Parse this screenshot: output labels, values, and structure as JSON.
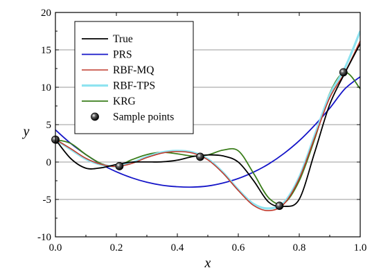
{
  "chart_data": {
    "type": "line",
    "title": "",
    "xlabel": "x",
    "ylabel": "y",
    "xlim": [
      0,
      1
    ],
    "ylim": [
      -10,
      20
    ],
    "grid": "horizontal",
    "legend_position": "top-left",
    "x_ticks": [
      "0.0",
      "0.2",
      "0.4",
      "0.6",
      "0.8",
      "1.0"
    ],
    "y_ticks": [
      "-10",
      "-5",
      "0",
      "5",
      "10",
      "15",
      "20"
    ],
    "series": [
      {
        "name": "True",
        "color": "#000000",
        "x": [
          0.0,
          0.05,
          0.1,
          0.15,
          0.2,
          0.25,
          0.3,
          0.35,
          0.4,
          0.45,
          0.5,
          0.55,
          0.6,
          0.65,
          0.7,
          0.75,
          0.8,
          0.85,
          0.9,
          0.95,
          1.0
        ],
        "y": [
          3.03,
          0.48,
          -0.82,
          -0.77,
          -0.32,
          -0.01,
          0.01,
          0.03,
          0.25,
          0.73,
          0.95,
          0.82,
          -0.01,
          -2.48,
          -5.37,
          -5.93,
          -4.97,
          1.22,
          7.71,
          11.92,
          15.83
        ]
      },
      {
        "name": "PRS",
        "color": "#1414c8",
        "x": [
          0.0,
          0.05,
          0.1,
          0.15,
          0.2,
          0.25,
          0.3,
          0.35,
          0.4,
          0.45,
          0.5,
          0.55,
          0.6,
          0.65,
          0.7,
          0.75,
          0.8,
          0.85,
          0.9,
          0.95,
          1.0
        ],
        "y": [
          4.3,
          2.5,
          1.0,
          -0.3,
          -1.3,
          -2.1,
          -2.7,
          -3.1,
          -3.3,
          -3.35,
          -3.2,
          -2.8,
          -2.2,
          -1.35,
          -0.25,
          1.15,
          2.85,
          4.9,
          7.2,
          9.8,
          11.4
        ]
      },
      {
        "name": "RBF-MQ",
        "color": "#c0392b",
        "x": [
          0.0,
          0.05,
          0.1,
          0.15,
          0.2,
          0.25,
          0.3,
          0.35,
          0.4,
          0.45,
          0.5,
          0.55,
          0.6,
          0.65,
          0.7,
          0.75,
          0.8,
          0.85,
          0.9,
          0.95,
          1.0
        ],
        "y": [
          3.03,
          1.8,
          0.5,
          -0.3,
          -0.6,
          -0.2,
          0.6,
          1.2,
          1.4,
          1.2,
          0.3,
          -1.5,
          -3.8,
          -5.8,
          -6.5,
          -5.6,
          -2.2,
          3.2,
          8.6,
          12.0,
          16.2
        ]
      },
      {
        "name": "RBF-TPS",
        "color": "#8fe3f0",
        "x": [
          0.0,
          0.05,
          0.1,
          0.15,
          0.2,
          0.25,
          0.3,
          0.35,
          0.4,
          0.45,
          0.5,
          0.55,
          0.6,
          0.65,
          0.7,
          0.75,
          0.8,
          0.85,
          0.9,
          0.95,
          1.0
        ],
        "y": [
          3.0,
          1.7,
          0.4,
          -0.35,
          -0.55,
          -0.1,
          0.7,
          1.3,
          1.5,
          1.3,
          0.4,
          -1.4,
          -3.7,
          -5.6,
          -6.2,
          -5.4,
          -2.0,
          3.5,
          9.0,
          12.6,
          17.5
        ]
      },
      {
        "name": "KRG",
        "color": "#3a7d1a",
        "x": [
          0.0,
          0.05,
          0.1,
          0.15,
          0.2,
          0.25,
          0.3,
          0.35,
          0.4,
          0.45,
          0.5,
          0.55,
          0.6,
          0.65,
          0.7,
          0.75,
          0.8,
          0.85,
          0.9,
          0.95,
          1.0
        ],
        "y": [
          3.0,
          2.5,
          1.0,
          -0.2,
          -0.55,
          0.3,
          1.0,
          1.3,
          1.1,
          0.8,
          0.95,
          1.6,
          1.5,
          -1.5,
          -4.8,
          -5.5,
          -2.5,
          3.0,
          9.2,
          12.0,
          9.8
        ]
      }
    ],
    "sample_points": {
      "name": "Sample points",
      "color": "#000000",
      "x": [
        0.0,
        0.21,
        0.475,
        0.735,
        0.945
      ],
      "y": [
        3.0,
        -0.55,
        0.7,
        -5.85,
        12.0
      ]
    }
  }
}
